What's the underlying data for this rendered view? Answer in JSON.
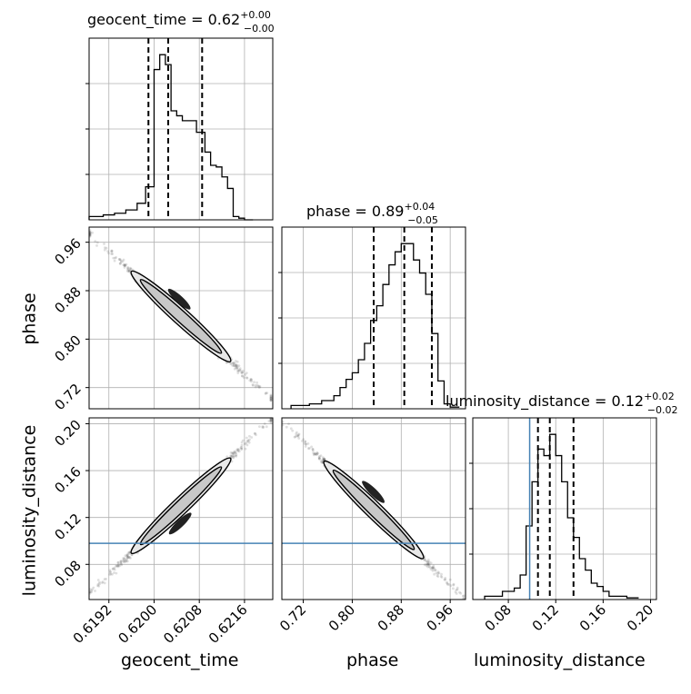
{
  "chart_data": {
    "type": "corner",
    "parameters": [
      "geocent_time",
      "phase",
      "luminosity_distance"
    ],
    "titles": [
      {
        "param": "geocent_time",
        "text": "geocent_time = 0.62",
        "plus": "+0.00",
        "minus": "−0.00"
      },
      {
        "param": "phase",
        "text": "phase = 0.89",
        "plus": "+0.04",
        "minus": "−0.05"
      },
      {
        "param": "luminosity_distance",
        "text": "luminosity_distance = 0.12",
        "plus": "+0.02",
        "minus": "−0.02"
      }
    ],
    "axis_labels": {
      "x": [
        "geocent_time",
        "phase",
        "luminosity_distance"
      ],
      "y": [
        "phase",
        "luminosity_distance"
      ]
    },
    "ranges": {
      "geocent_time": [
        0.61885,
        0.6221
      ],
      "phase": [
        0.685,
        0.985
      ],
      "luminosity_distance": [
        0.05,
        0.205
      ]
    },
    "ticks": {
      "geocent_time": [
        0.6192,
        0.62,
        0.6208,
        0.6216
      ],
      "phase": [
        0.72,
        0.8,
        0.88,
        0.96
      ],
      "luminosity_distance": [
        0.08,
        0.12,
        0.16,
        0.2
      ]
    },
    "tick_labels": {
      "geocent_time": [
        "0.6192",
        "0.6200",
        "0.6208",
        "0.6216"
      ],
      "phase": [
        "0.72",
        "0.80",
        "0.88",
        "0.96"
      ],
      "luminosity_distance": [
        "0.08",
        "0.12",
        "0.16",
        "0.20"
      ]
    },
    "quantiles": {
      "geocent_time": [
        0.6199,
        0.62025,
        0.62085
      ],
      "phase": [
        0.835,
        0.885,
        0.93
      ],
      "luminosity_distance": [
        0.105,
        0.115,
        0.135
      ]
    },
    "truth": {
      "luminosity_distance": 0.098
    },
    "truth_color": "#4682b4",
    "histograms": {
      "geocent_time": {
        "bins": [
          0.61885,
          0.6191,
          0.6193,
          0.6195,
          0.6197,
          0.61985,
          0.62,
          0.6201,
          0.6202,
          0.6203,
          0.6204,
          0.6205,
          0.6206,
          0.62075,
          0.6209,
          0.621,
          0.6211,
          0.6212,
          0.6213,
          0.6214,
          0.6215,
          0.6216,
          0.62175
        ],
        "counts": [
          2,
          3,
          4,
          6,
          10,
          20,
          91,
          100,
          94,
          66,
          63,
          60,
          60,
          53,
          41,
          33,
          32,
          26,
          19,
          2,
          1,
          0
        ]
      },
      "phase": {
        "bins": [
          0.7,
          0.73,
          0.75,
          0.77,
          0.78,
          0.79,
          0.8,
          0.81,
          0.82,
          0.83,
          0.84,
          0.85,
          0.86,
          0.87,
          0.88,
          0.89,
          0.9,
          0.91,
          0.92,
          0.93,
          0.94,
          0.95,
          0.96,
          0.975
        ],
        "counts": [
          2,
          3,
          5,
          8,
          13,
          18,
          22,
          30,
          40,
          54,
          63,
          76,
          88,
          96,
          101,
          101,
          91,
          83,
          70,
          46,
          17,
          3,
          1
        ]
      },
      "luminosity_distance": {
        "bins": [
          0.06,
          0.075,
          0.085,
          0.09,
          0.095,
          0.1,
          0.105,
          0.11,
          0.115,
          0.12,
          0.125,
          0.13,
          0.135,
          0.14,
          0.145,
          0.15,
          0.155,
          0.16,
          0.165,
          0.17,
          0.18,
          0.19
        ],
        "counts": [
          2,
          5,
          7,
          15,
          45,
          72,
          92,
          88,
          101,
          88,
          72,
          50,
          38,
          25,
          18,
          10,
          8,
          5,
          2,
          2,
          1
        ]
      }
    },
    "grid": true
  }
}
